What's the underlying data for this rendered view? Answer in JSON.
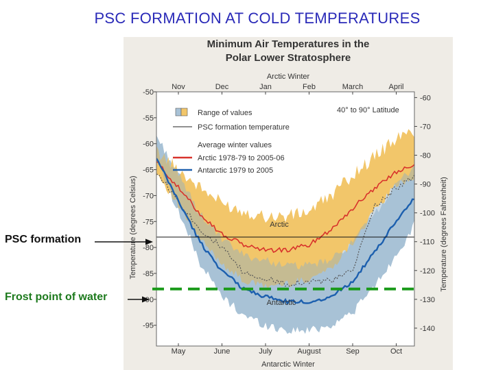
{
  "slide": {
    "title": "PSC FORMATION AT COLD TEMPERATURES",
    "psc_label": "PSC formation",
    "frost_label": "Frost point of water"
  },
  "colors": {
    "arctic_range": "#f2c66a",
    "antarctic_range": "#a8c2d6",
    "overlap": "#8faec4",
    "arctic_line": "#d8322b",
    "antarctic_line": "#1c5fae",
    "frost_line": "#1a9a1a",
    "panel": "#efece6"
  },
  "chart_data": {
    "type": "area",
    "title": "Minimum Air Temperatures in the Polar Lower Stratosphere",
    "title_line1": "Minimum Air Temperatures in the",
    "title_line2": "Polar Lower Stratosphere",
    "latitude_note": "40° to 90° Latitude",
    "top_axis_title": "Arctic Winter",
    "bottom_axis_title": "Antarctic Winter",
    "top_months": [
      "Nov",
      "Dec",
      "Jan",
      "Feb",
      "March",
      "April"
    ],
    "bottom_months": [
      "May",
      "June",
      "July",
      "August",
      "Sep",
      "Oct"
    ],
    "ylabel_left": "Temperature (degrees Celsius)",
    "ylabel_right": "Temperature (degrees Fahrenheit)",
    "ylim_celsius": [
      -99,
      -50
    ],
    "celsius_ticks": [
      "-50",
      "-55",
      "-60",
      "-65",
      "-70",
      "-75",
      "-80",
      "-85",
      "-90",
      "-95"
    ],
    "fahrenheit_ticks": [
      "-60",
      "-70",
      "-80",
      "-90",
      "-100",
      "-110",
      "-120",
      "-130",
      "-140"
    ],
    "legend": {
      "range": "Range of values",
      "psc": "PSC formation temperature",
      "avg_header": "Average winter values",
      "arctic": "Arctic 1978-79 to 2005-06",
      "antarctic": "Antarctic 1979 to 2005"
    },
    "region_labels": {
      "arctic": "Arctic",
      "antarctic": "Antarctic"
    },
    "psc_formation_temp_c": -78,
    "frost_point_c": -88,
    "x_months": [
      0,
      0.5,
      1,
      1.5,
      2,
      2.5,
      3,
      3.5,
      4,
      4.5,
      5,
      5.5
    ],
    "series": [
      {
        "name": "Arctic average",
        "values": [
          -68.5,
          -73.5,
          -77.5,
          -79.5,
          -80.5,
          -80.5,
          -79.5,
          -76.5,
          -72.5,
          -68.5,
          -65.5,
          -63.5
        ]
      },
      {
        "name": "Antarctic average",
        "values": [
          -71,
          -79,
          -84.5,
          -88,
          -89.5,
          -90.5,
          -90.5,
          -89.5,
          -86.5,
          -81,
          -75,
          -69.5
        ]
      },
      {
        "name": "Arctic range upper",
        "values": [
          -65,
          -68.5,
          -71.5,
          -73,
          -74,
          -74,
          -73,
          -70,
          -66,
          -62.5,
          -59,
          -57.5
        ]
      },
      {
        "name": "Arctic range lower",
        "values": [
          -72,
          -78.5,
          -83,
          -86.5,
          -87.5,
          -87,
          -86,
          -84,
          -79,
          -73,
          -68,
          -66
        ]
      },
      {
        "name": "Antarctic range upper",
        "values": [
          -66,
          -73.5,
          -78.5,
          -81.5,
          -82.5,
          -83.5,
          -83.5,
          -82.5,
          -79,
          -73.5,
          -68,
          -63.5
        ]
      },
      {
        "name": "Antarctic range lower",
        "values": [
          -73,
          -83,
          -89.5,
          -93,
          -95,
          -96,
          -96,
          -95,
          -92.5,
          -87.5,
          -81.5,
          -74.5
        ]
      },
      {
        "name": "Antarctic coldest (dotted)",
        "values": [
          -71,
          -76.5,
          -80,
          -85,
          -86,
          -87,
          -86.5,
          -86.5,
          -84.5,
          -72,
          -68.5,
          -66
        ]
      }
    ]
  }
}
